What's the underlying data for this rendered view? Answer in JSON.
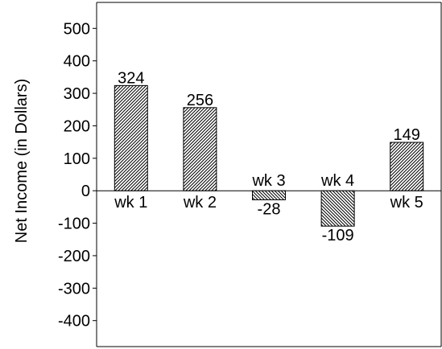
{
  "chart_data": {
    "type": "bar",
    "title": "",
    "xlabel": "",
    "ylabel": "Net Income (in Dollars)",
    "categories": [
      "wk 1",
      "wk 2",
      "wk 3",
      "wk 4",
      "wk 5"
    ],
    "values": [
      324,
      256,
      -28,
      -109,
      149
    ],
    "value_labels": [
      "324",
      "256",
      "-28",
      "-109",
      "149"
    ],
    "ylim": [
      -480,
      580
    ],
    "yticks": [
      500,
      400,
      300,
      200,
      100,
      0,
      -100,
      -200,
      -300,
      -400
    ],
    "ytick_labels": [
      "500",
      "400",
      "300",
      "200",
      "100",
      "0",
      "-100",
      "-200",
      "-300",
      "-400"
    ],
    "grid": false,
    "legend": "none",
    "bar_fill": "diagonal-hatch",
    "colors": {
      "bar_stroke": "#000000",
      "hatch": "#000000",
      "background": "#ffffff"
    }
  }
}
